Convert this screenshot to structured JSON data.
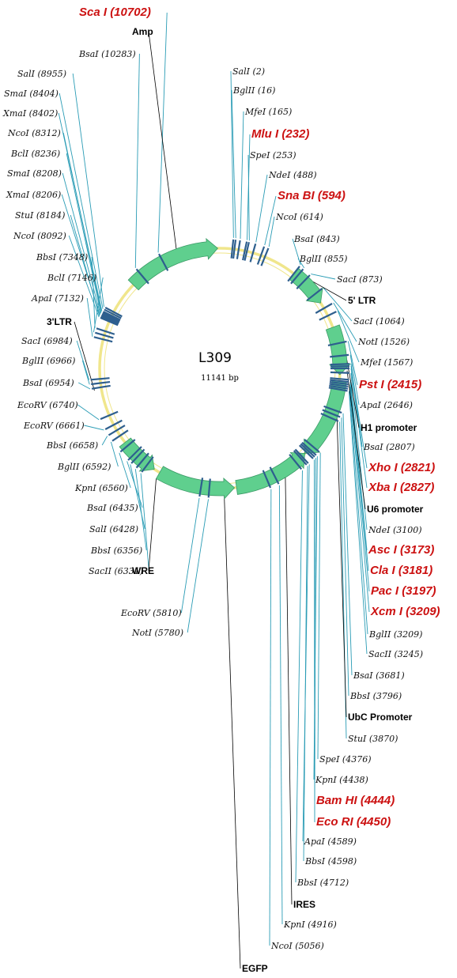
{
  "plasmid": {
    "name": "L309",
    "size_label": "11141 bp"
  },
  "colors": {
    "backbone": "#f0e68c",
    "feature_arrow": "#5fcf8e",
    "site_mark": "#2e5f8e",
    "site_line": "#2a9cb5",
    "enzyme_unique": "#cc1111",
    "enzyme_normal": "#111111"
  },
  "sites": [
    {
      "enzyme": "Sca I",
      "pos": "10702",
      "unique": true
    },
    {
      "enzyme": "BsaI",
      "pos": "10283",
      "unique": false
    },
    {
      "enzyme": "SalI",
      "pos": "8955",
      "unique": false
    },
    {
      "enzyme": "SmaI",
      "pos": "8404",
      "unique": false
    },
    {
      "enzyme": "XmaI",
      "pos": "8402",
      "unique": false
    },
    {
      "enzyme": "NcoI",
      "pos": "8312",
      "unique": false
    },
    {
      "enzyme": "BclI",
      "pos": "8236",
      "unique": false
    },
    {
      "enzyme": "SmaI",
      "pos": "8208",
      "unique": false
    },
    {
      "enzyme": "XmaI",
      "pos": "8206",
      "unique": false
    },
    {
      "enzyme": "StuI",
      "pos": "8184",
      "unique": false
    },
    {
      "enzyme": "NcoI",
      "pos": "8092",
      "unique": false
    },
    {
      "enzyme": "BbsI",
      "pos": "7348",
      "unique": false
    },
    {
      "enzyme": "BclI",
      "pos": "7146",
      "unique": false
    },
    {
      "enzyme": "ApaI",
      "pos": "7132",
      "unique": false
    },
    {
      "enzyme": "SacI",
      "pos": "6984",
      "unique": false
    },
    {
      "enzyme": "BglII",
      "pos": "6966",
      "unique": false
    },
    {
      "enzyme": "BsaI",
      "pos": "6954",
      "unique": false
    },
    {
      "enzyme": "EcoRV",
      "pos": "6740",
      "unique": false
    },
    {
      "enzyme": "EcoRV",
      "pos": "6661",
      "unique": false
    },
    {
      "enzyme": "BbsI",
      "pos": "6658",
      "unique": false
    },
    {
      "enzyme": "BglII",
      "pos": "6592",
      "unique": false
    },
    {
      "enzyme": "KpnI",
      "pos": "6560",
      "unique": false
    },
    {
      "enzyme": "BsaI",
      "pos": "6435",
      "unique": false
    },
    {
      "enzyme": "SalI",
      "pos": "6428",
      "unique": false
    },
    {
      "enzyme": "BbsI",
      "pos": "6356",
      "unique": false
    },
    {
      "enzyme": "SacII",
      "pos": "6331",
      "unique": false
    },
    {
      "enzyme": "EcoRV",
      "pos": "5810",
      "unique": false
    },
    {
      "enzyme": "NotI",
      "pos": "5780",
      "unique": false
    },
    {
      "enzyme": "SalI",
      "pos": "2",
      "unique": false
    },
    {
      "enzyme": "BglII",
      "pos": "16",
      "unique": false
    },
    {
      "enzyme": "MfeI",
      "pos": "165",
      "unique": false
    },
    {
      "enzyme": "Mlu I",
      "pos": "232",
      "unique": true
    },
    {
      "enzyme": "SpeI",
      "pos": "253",
      "unique": false
    },
    {
      "enzyme": "NdeI",
      "pos": "488",
      "unique": false
    },
    {
      "enzyme": "Sna BI",
      "pos": "594",
      "unique": true
    },
    {
      "enzyme": "NcoI",
      "pos": "614",
      "unique": false
    },
    {
      "enzyme": "BsaI",
      "pos": "843",
      "unique": false
    },
    {
      "enzyme": "BglII",
      "pos": "855",
      "unique": false
    },
    {
      "enzyme": "SacI",
      "pos": "873",
      "unique": false
    },
    {
      "enzyme": "SacI",
      "pos": "1064",
      "unique": false
    },
    {
      "enzyme": "NotI",
      "pos": "1526",
      "unique": false
    },
    {
      "enzyme": "MfeI",
      "pos": "1567",
      "unique": false
    },
    {
      "enzyme": "Pst I",
      "pos": "2415",
      "unique": true
    },
    {
      "enzyme": "ApaI",
      "pos": "2646",
      "unique": false
    },
    {
      "enzyme": "BsaI",
      "pos": "2807",
      "unique": false
    },
    {
      "enzyme": "Xho I",
      "pos": "2821",
      "unique": true
    },
    {
      "enzyme": "Xba I",
      "pos": "2827",
      "unique": true
    },
    {
      "enzyme": "NdeI",
      "pos": "3100",
      "unique": false
    },
    {
      "enzyme": "Asc I",
      "pos": "3173",
      "unique": true
    },
    {
      "enzyme": "Cla I",
      "pos": "3181",
      "unique": true
    },
    {
      "enzyme": "Pac I",
      "pos": "3197",
      "unique": true
    },
    {
      "enzyme": "Xcm I",
      "pos": "3209",
      "unique": true
    },
    {
      "enzyme": "BglII",
      "pos": "3209",
      "unique": false
    },
    {
      "enzyme": "SacII",
      "pos": "3245",
      "unique": false
    },
    {
      "enzyme": "BsaI",
      "pos": "3681",
      "unique": false
    },
    {
      "enzyme": "BbsI",
      "pos": "3796",
      "unique": false
    },
    {
      "enzyme": "StuI",
      "pos": "3870",
      "unique": false
    },
    {
      "enzyme": "SpeI",
      "pos": "4376",
      "unique": false
    },
    {
      "enzyme": "KpnI",
      "pos": "4438",
      "unique": false
    },
    {
      "enzyme": "Bam HI",
      "pos": "4444",
      "unique": true
    },
    {
      "enzyme": "Eco RI",
      "pos": "4450",
      "unique": true
    },
    {
      "enzyme": "ApaI",
      "pos": "4589",
      "unique": false
    },
    {
      "enzyme": "BbsI",
      "pos": "4598",
      "unique": false
    },
    {
      "enzyme": "BbsI",
      "pos": "4712",
      "unique": false
    },
    {
      "enzyme": "KpnI",
      "pos": "4916",
      "unique": false
    },
    {
      "enzyme": "NcoI",
      "pos": "5056",
      "unique": false
    }
  ],
  "features": [
    {
      "name": "Amp"
    },
    {
      "name": "3'LTR"
    },
    {
      "name": "5' LTR"
    },
    {
      "name": "H1 promoter"
    },
    {
      "name": "U6 promoter"
    },
    {
      "name": "UbC Promoter"
    },
    {
      "name": "IRES"
    },
    {
      "name": "EGFP"
    },
    {
      "name": "WRE"
    }
  ]
}
